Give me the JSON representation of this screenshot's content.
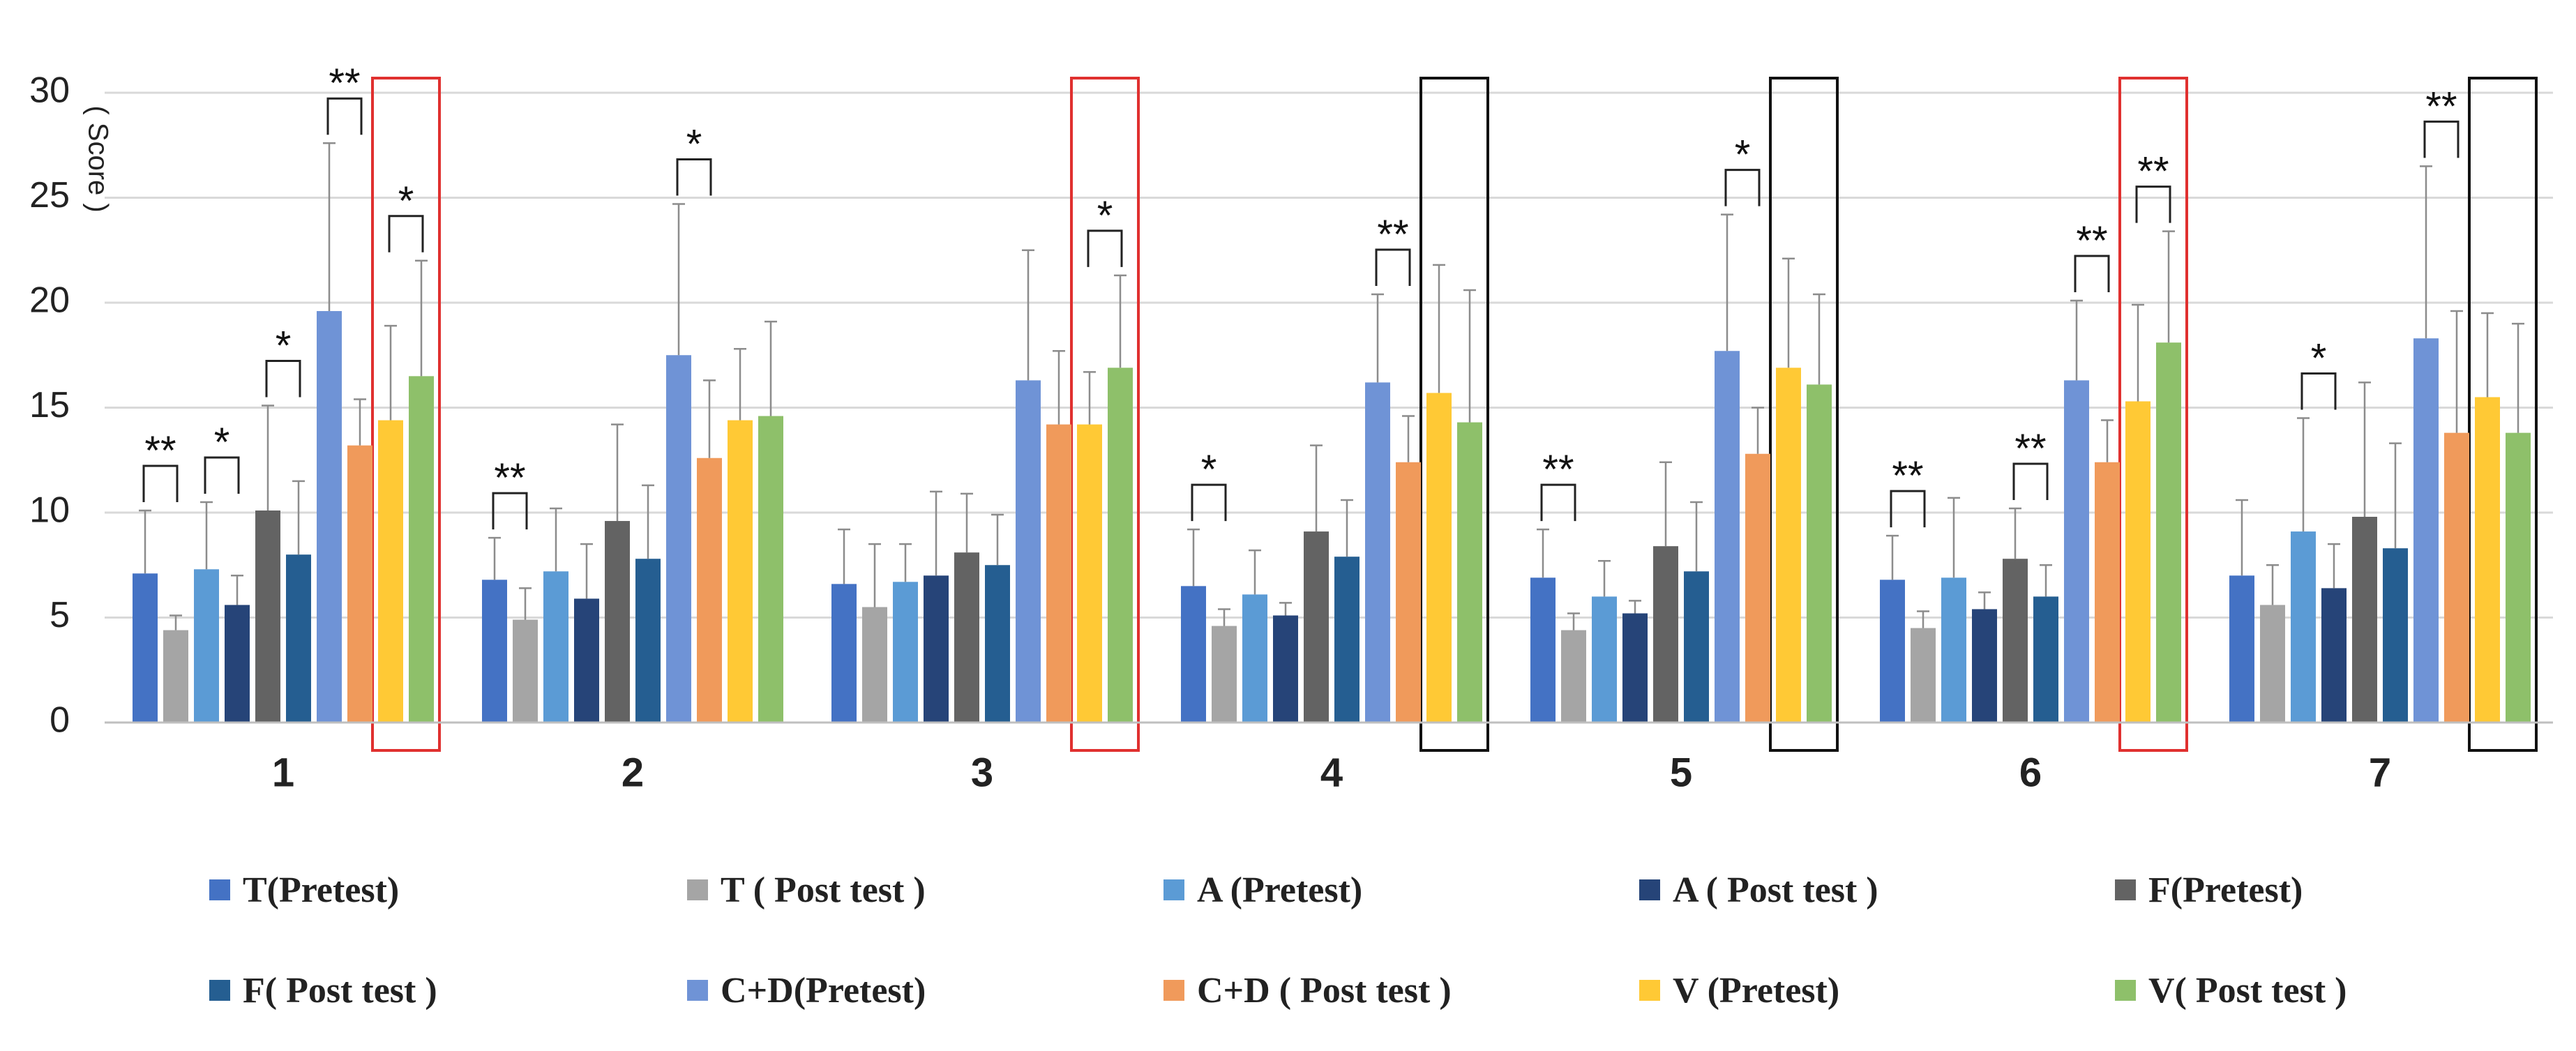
{
  "chart_data": {
    "type": "bar",
    "title": "",
    "xlabel": "",
    "ylabel": "( Score )",
    "ylim": [
      0,
      30
    ],
    "yticks": [
      "0",
      "5",
      "10",
      "15",
      "20",
      "25",
      "30"
    ],
    "grid": true,
    "legend_position": "bottom",
    "categories": [
      "1",
      "2",
      "3",
      "4",
      "5",
      "6",
      "7"
    ],
    "series": [
      {
        "name": "T(Pretest)",
        "color": "#4472C4",
        "values": [
          7.1,
          6.8,
          6.6,
          6.5,
          6.9,
          6.8,
          7.0
        ],
        "errors": [
          3.0,
          2.0,
          2.6,
          2.7,
          2.3,
          2.1,
          3.6
        ]
      },
      {
        "name": "T ( Post test )",
        "color": "#A5A5A5",
        "values": [
          4.4,
          4.9,
          5.5,
          4.6,
          4.4,
          4.5,
          5.6
        ],
        "errors": [
          0.7,
          1.5,
          3.0,
          0.8,
          0.8,
          0.8,
          1.9
        ]
      },
      {
        "name": "A (Pretest)",
        "color": "#5B9BD5",
        "values": [
          7.3,
          7.2,
          6.7,
          6.1,
          6.0,
          6.9,
          9.1
        ],
        "errors": [
          3.2,
          3.0,
          1.8,
          2.1,
          1.7,
          3.8,
          5.4
        ]
      },
      {
        "name": "A ( Post test )",
        "color": "#264478",
        "values": [
          5.6,
          5.9,
          7.0,
          5.1,
          5.2,
          5.4,
          6.4
        ],
        "errors": [
          1.4,
          2.6,
          4.0,
          0.6,
          0.6,
          0.8,
          2.1
        ]
      },
      {
        "name": "F(Pretest)",
        "color": "#636363",
        "values": [
          10.1,
          9.6,
          8.1,
          9.1,
          8.4,
          7.8,
          9.8
        ],
        "errors": [
          5.0,
          4.6,
          2.8,
          4.1,
          4.0,
          2.4,
          6.4
        ]
      },
      {
        "name": "F( Post test )",
        "color": "#255E91",
        "values": [
          8.0,
          7.8,
          7.5,
          7.9,
          7.2,
          6.0,
          8.3
        ],
        "errors": [
          3.5,
          3.5,
          2.4,
          2.7,
          3.3,
          1.5,
          5.0
        ]
      },
      {
        "name": "C+D(Pretest)",
        "color": "#6F93D6",
        "values": [
          19.6,
          17.5,
          16.3,
          16.2,
          17.7,
          16.3,
          18.3
        ],
        "errors": [
          8.0,
          7.2,
          6.2,
          4.2,
          6.5,
          3.8,
          8.2
        ]
      },
      {
        "name": "C+D ( Post test )",
        "color": "#F09A5B",
        "values": [
          13.2,
          12.6,
          14.2,
          12.4,
          12.8,
          12.4,
          13.8
        ],
        "errors": [
          2.2,
          3.7,
          3.5,
          2.2,
          2.2,
          2.0,
          5.8
        ]
      },
      {
        "name": "V (Pretest)",
        "color": "#FFC935",
        "values": [
          14.4,
          14.4,
          14.2,
          15.7,
          16.9,
          15.3,
          15.5
        ],
        "errors": [
          4.5,
          3.4,
          2.5,
          6.1,
          5.2,
          4.6,
          4.0
        ]
      },
      {
        "name": "V( Post test )",
        "color": "#8EC06A",
        "values": [
          16.5,
          14.6,
          16.9,
          14.3,
          16.1,
          18.1,
          13.8
        ],
        "errors": [
          5.5,
          4.5,
          4.4,
          6.3,
          4.3,
          5.3,
          5.2
        ]
      }
    ],
    "significance": [
      {
        "group": 0,
        "from": 0,
        "to": 1,
        "label": "**"
      },
      {
        "group": 0,
        "from": 2,
        "to": 3,
        "label": "*"
      },
      {
        "group": 0,
        "from": 4,
        "to": 5,
        "label": "*"
      },
      {
        "group": 0,
        "from": 6,
        "to": 7,
        "label": "**"
      },
      {
        "group": 0,
        "from": 8,
        "to": 9,
        "label": "*"
      },
      {
        "group": 1,
        "from": 0,
        "to": 1,
        "label": "**"
      },
      {
        "group": 1,
        "from": 6,
        "to": 7,
        "label": "*"
      },
      {
        "group": 2,
        "from": 8,
        "to": 9,
        "label": "*"
      },
      {
        "group": 3,
        "from": 0,
        "to": 1,
        "label": "*"
      },
      {
        "group": 3,
        "from": 6,
        "to": 7,
        "label": "**"
      },
      {
        "group": 4,
        "from": 0,
        "to": 1,
        "label": "**"
      },
      {
        "group": 4,
        "from": 6,
        "to": 7,
        "label": "*"
      },
      {
        "group": 5,
        "from": 0,
        "to": 1,
        "label": "**"
      },
      {
        "group": 5,
        "from": 4,
        "to": 5,
        "label": "**"
      },
      {
        "group": 5,
        "from": 6,
        "to": 7,
        "label": "**"
      },
      {
        "group": 5,
        "from": 8,
        "to": 9,
        "label": "**"
      },
      {
        "group": 6,
        "from": 2,
        "to": 3,
        "label": "*"
      },
      {
        "group": 6,
        "from": 6,
        "to": 7,
        "label": "**"
      }
    ],
    "highlight_boxes": [
      {
        "group": 0,
        "color": "#E0302F"
      },
      {
        "group": 2,
        "color": "#E0302F"
      },
      {
        "group": 3,
        "color": "#111111"
      },
      {
        "group": 4,
        "color": "#111111"
      },
      {
        "group": 5,
        "color": "#E0302F"
      },
      {
        "group": 6,
        "color": "#111111"
      }
    ]
  }
}
